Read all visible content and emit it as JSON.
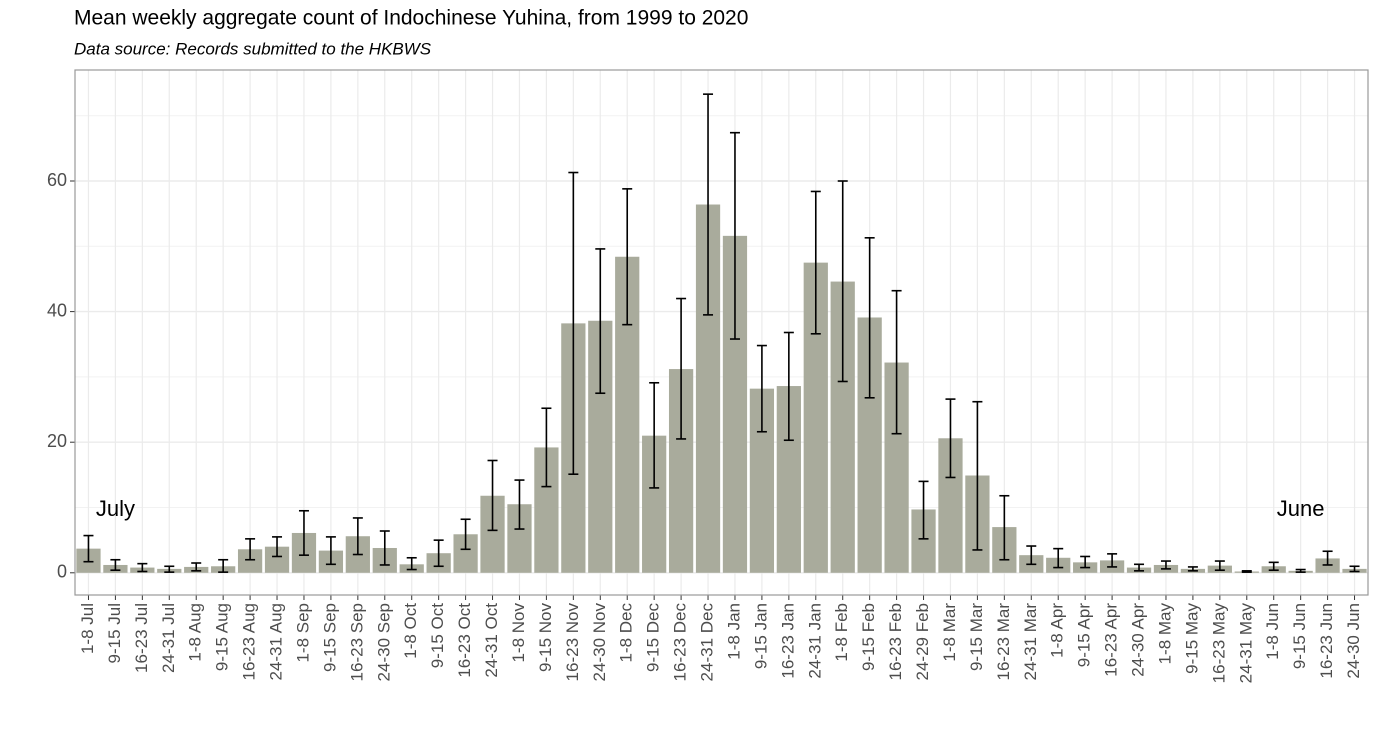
{
  "chart_data": {
    "type": "bar",
    "title": "Mean weekly aggregate count of Indochinese Yuhina, from 1999 to 2020",
    "subtitle": "Data source: Records submitted to the HKBWS",
    "categories": [
      "1-8 Jul",
      "9-15 Jul",
      "16-23 Jul",
      "24-31 Jul",
      "1-8 Aug",
      "9-15 Aug",
      "16-23 Aug",
      "24-31 Aug",
      "1-8 Sep",
      "9-15 Sep",
      "16-23 Sep",
      "24-30 Sep",
      "1-8 Oct",
      "9-15 Oct",
      "16-23 Oct",
      "24-31 Oct",
      "1-8 Nov",
      "9-15 Nov",
      "16-23 Nov",
      "24-30 Nov",
      "1-8 Dec",
      "9-15 Dec",
      "16-23 Dec",
      "24-31 Dec",
      "1-8 Jan",
      "9-15 Jan",
      "16-23 Jan",
      "24-31 Jan",
      "1-8 Feb",
      "9-15 Feb",
      "16-23 Feb",
      "24-29 Feb",
      "1-8 Mar",
      "9-15 Mar",
      "16-23 Mar",
      "24-31 Mar",
      "1-8 Apr",
      "9-15 Apr",
      "16-23 Apr",
      "24-30 Apr",
      "1-8 May",
      "9-15 May",
      "16-23 May",
      "24-31 May",
      "1-8 Jun",
      "9-15 Jun",
      "16-23 Jun",
      "24-30 Jun"
    ],
    "values": [
      3.7,
      1.2,
      0.8,
      0.6,
      0.9,
      1.0,
      3.6,
      4.0,
      6.1,
      3.4,
      5.6,
      3.8,
      1.3,
      3.0,
      5.9,
      11.8,
      10.5,
      19.2,
      38.2,
      38.6,
      48.4,
      21.0,
      31.2,
      56.4,
      51.6,
      28.2,
      28.6,
      47.5,
      44.6,
      39.1,
      32.2,
      9.7,
      20.6,
      14.9,
      7.0,
      2.7,
      2.3,
      1.6,
      1.9,
      0.8,
      1.2,
      0.6,
      1.1,
      0.2,
      1.0,
      0.3,
      2.2,
      0.6
    ],
    "lower": [
      1.7,
      0.4,
      0.2,
      0.1,
      0.3,
      0.1,
      2.0,
      2.5,
      2.7,
      1.3,
      2.8,
      1.2,
      0.5,
      1.0,
      3.6,
      6.5,
      6.7,
      13.2,
      15.1,
      27.5,
      38.0,
      13.0,
      20.5,
      39.5,
      35.8,
      21.6,
      20.3,
      36.6,
      29.3,
      26.8,
      21.3,
      5.2,
      14.6,
      3.5,
      2.0,
      1.3,
      0.8,
      0.8,
      0.9,
      0.3,
      0.6,
      0.3,
      0.4,
      0.1,
      0.4,
      0.1,
      1.2,
      0.2
    ],
    "upper": [
      5.7,
      2.0,
      1.4,
      1.0,
      1.5,
      2.0,
      5.2,
      5.5,
      9.5,
      5.5,
      8.4,
      6.4,
      2.3,
      5.0,
      8.2,
      17.2,
      14.2,
      25.2,
      61.3,
      49.6,
      58.8,
      29.1,
      42.0,
      73.3,
      67.4,
      34.8,
      36.8,
      58.4,
      60.0,
      51.3,
      43.2,
      14.0,
      26.6,
      26.2,
      11.8,
      4.1,
      3.7,
      2.5,
      2.9,
      1.3,
      1.8,
      0.9,
      1.8,
      0.3,
      1.6,
      0.5,
      3.3,
      1.0
    ],
    "color": "#a9ab9c",
    "ylim": [
      -3.4,
      77
    ],
    "yticks": [
      0,
      20,
      40,
      60
    ],
    "minor_yticks": [
      10,
      30,
      50,
      70
    ],
    "grid": true,
    "annotations": [
      "July",
      "June"
    ]
  }
}
